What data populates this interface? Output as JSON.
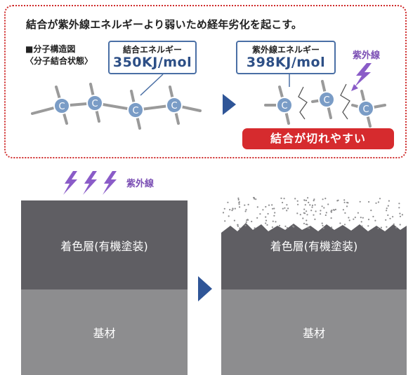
{
  "heading": "結合が紫外線エネルギーより弱いため経年劣化を起こす。",
  "structure": {
    "label_line1": "■分子構造図",
    "label_line2": "〈分子結合状態〉",
    "atom_label": "C"
  },
  "bond_energy": {
    "title": "結合エネルギー",
    "value": "350KJ/mol"
  },
  "uv_energy": {
    "title": "紫外線エネルギー",
    "value": "398KJ/mol"
  },
  "uv_label_top": "紫外線",
  "uv_label_bottom": "紫外線",
  "result_badge": "結合が切れやすい",
  "layers": {
    "coating_before": "着色層(有機塗装)",
    "base_before": "基材",
    "coating_after": "着色層(有機塗装)",
    "base_after": "基材"
  },
  "colors": {
    "accent_red": "#d62b2e",
    "bond_blue": "#4a6fa5",
    "uv_purple": "#8a5cc8",
    "coating_gray": "#5f5e63",
    "base_gray": "#8d8d8f"
  }
}
